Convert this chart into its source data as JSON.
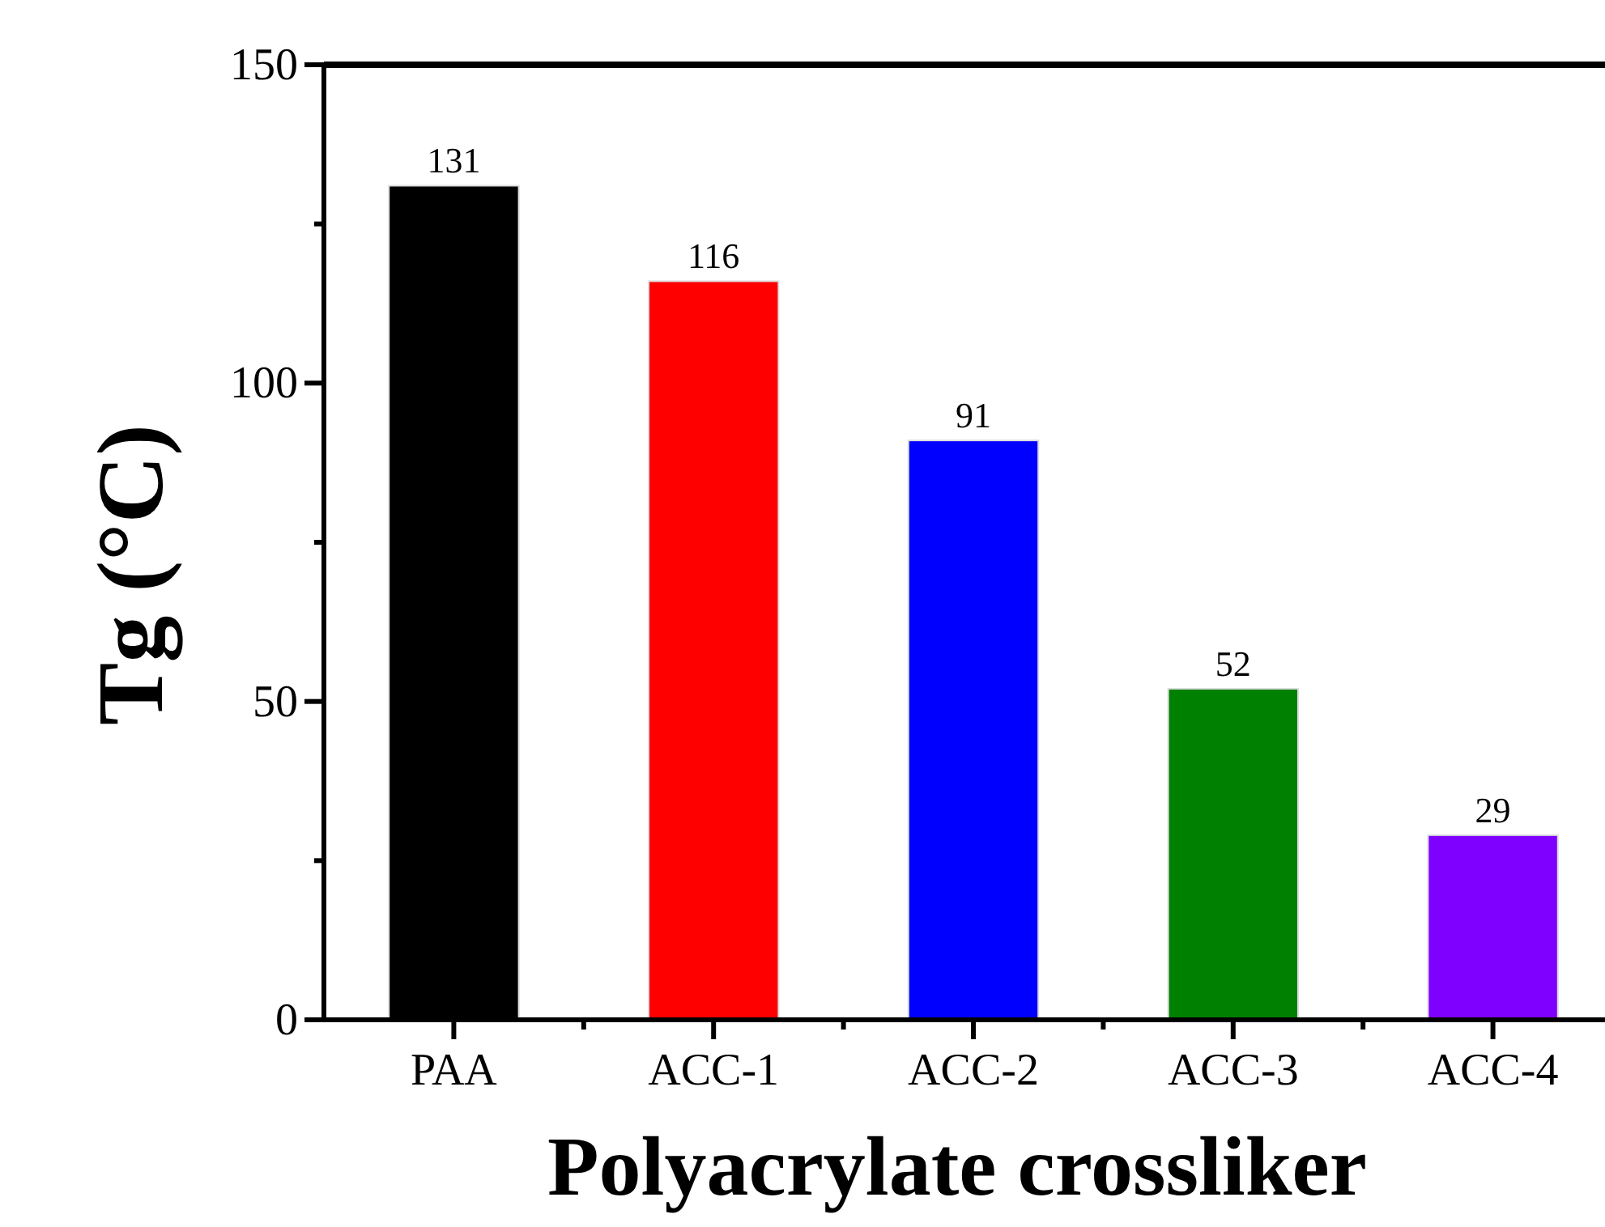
{
  "chart_data": {
    "type": "bar",
    "xlabel": "Polyacrylate crossliker",
    "ylabel": "Tg (°C)",
    "categories": [
      "PAA",
      "ACC-1",
      "ACC-2",
      "ACC-3",
      "ACC-4"
    ],
    "values": [
      131,
      116,
      91,
      52,
      29
    ],
    "colors": [
      "#000000",
      "#ff0000",
      "#0000ff",
      "#008000",
      "#8000ff"
    ],
    "ylim": [
      0,
      150
    ],
    "yticks": [
      0,
      {
        "value": 25,
        "label": null
      },
      50,
      {
        "value": 75,
        "label": null
      },
      100,
      {
        "value": 125,
        "label": null
      },
      150
    ],
    "data_labels": true,
    "grid": false
  }
}
